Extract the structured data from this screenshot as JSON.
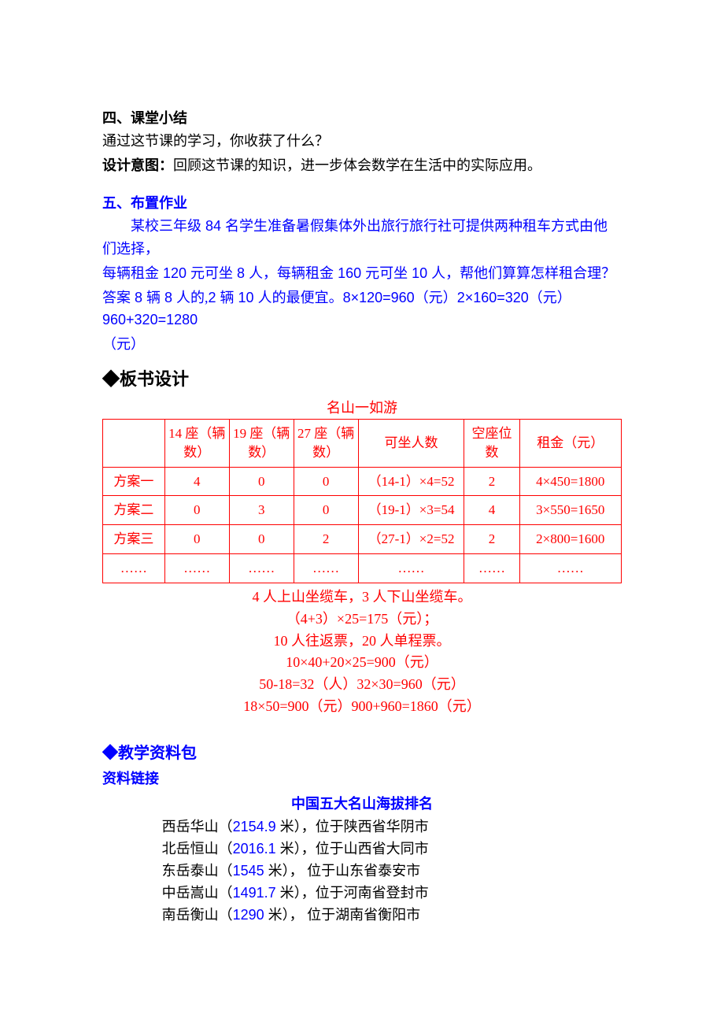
{
  "section1": {
    "title": "四、课堂小结",
    "line1": "通过这节课的学习，你收获了什么？",
    "line2_bold": "设计意图：",
    "line2_rest": "回顾这节课的知识，进一步体会数学在生活中的实际应用。"
  },
  "section2": {
    "title": "五、布置作业",
    "line1_a": "某校三年级",
    "line1_b": " 84 ",
    "line1_c": "名学生准备暑假集体外出旅行旅行社可提供两种租车方式由他们选择，",
    "line2_a": "每辆租金",
    "line2_b": " 120 ",
    "line2_c": "元可坐",
    "line2_d": " 8 ",
    "line2_e": "人，每辆租金",
    "line2_f": " 160 ",
    "line2_g": "元可坐",
    "line2_h": " 10 ",
    "line2_i": "人，帮他们算算怎样租合理？",
    "ans_a": "答案",
    "ans_b": " 8 ",
    "ans_c": "辆",
    "ans_d": " 8 ",
    "ans_e": "人的,",
    "ans_f": "2 ",
    "ans_g": "辆",
    "ans_h": " 10 ",
    "ans_i": "人的最便宜。",
    "ans_j": "8×120=960",
    "ans_k": "（元）",
    "ans_l": "2×160=320",
    "ans_m": "（元）",
    "ans_n": "960+320=1280",
    "ans_o": "（元）"
  },
  "board": {
    "heading": "◆板书设计",
    "table_title": "名山一如游",
    "header": [
      "",
      "14 座（辆数）",
      "19 座（辆数）",
      "27 座（辆数）",
      "可坐人数",
      "空座位数",
      "租金（元）"
    ],
    "rows": [
      [
        "方案一",
        "4",
        "0",
        "0",
        "（14-1）×4=52",
        "2",
        "4×450=1800"
      ],
      [
        "方案二",
        "0",
        "3",
        "0",
        "（19-1）×3=54",
        "4",
        "3×550=1650"
      ],
      [
        "方案三",
        "0",
        "0",
        "2",
        "（27-1）×2=52",
        "2",
        "2×800=1600"
      ],
      [
        "……",
        "……",
        "……",
        "……",
        "……",
        "……",
        "……"
      ]
    ],
    "calc": [
      "4 人上山坐缆车，3 人下山坐缆车。",
      "（4+3）×25=175（元）；",
      "10 人往返票，20 人单程票。",
      "10×40+20×25=900（元）",
      "50-18=32（人）32×30=960（元）",
      "18×50=900（元）900+960=1860（元）"
    ]
  },
  "resources": {
    "heading": "◆教学资料包",
    "sub": "资料链接",
    "title": "中国五大名山海拔排名",
    "items": [
      {
        "name": "西岳华山（",
        "num": "2154.9 ",
        "unit": "米），位于陕西省华阴市"
      },
      {
        "name": "北岳恒山（",
        "num": "2016.1 ",
        "unit": "米），位于山西省大同市"
      },
      {
        "name": "东岳泰山（",
        "num": "1545 ",
        "unit": "米），  位于山东省泰安市"
      },
      {
        "name": "中岳嵩山（",
        "num": "1491.7 ",
        "unit": "米），位于河南省登封市"
      },
      {
        "name": "南岳衡山（",
        "num": "1290 ",
        "unit": "米），  位于湖南省衡阳市"
      }
    ]
  },
  "colors": {
    "blue": "#0000ff",
    "red": "#ff0000",
    "black": "#000000"
  },
  "col_widths": [
    "73",
    "76",
    "76",
    "76",
    "125",
    "65",
    "120"
  ]
}
